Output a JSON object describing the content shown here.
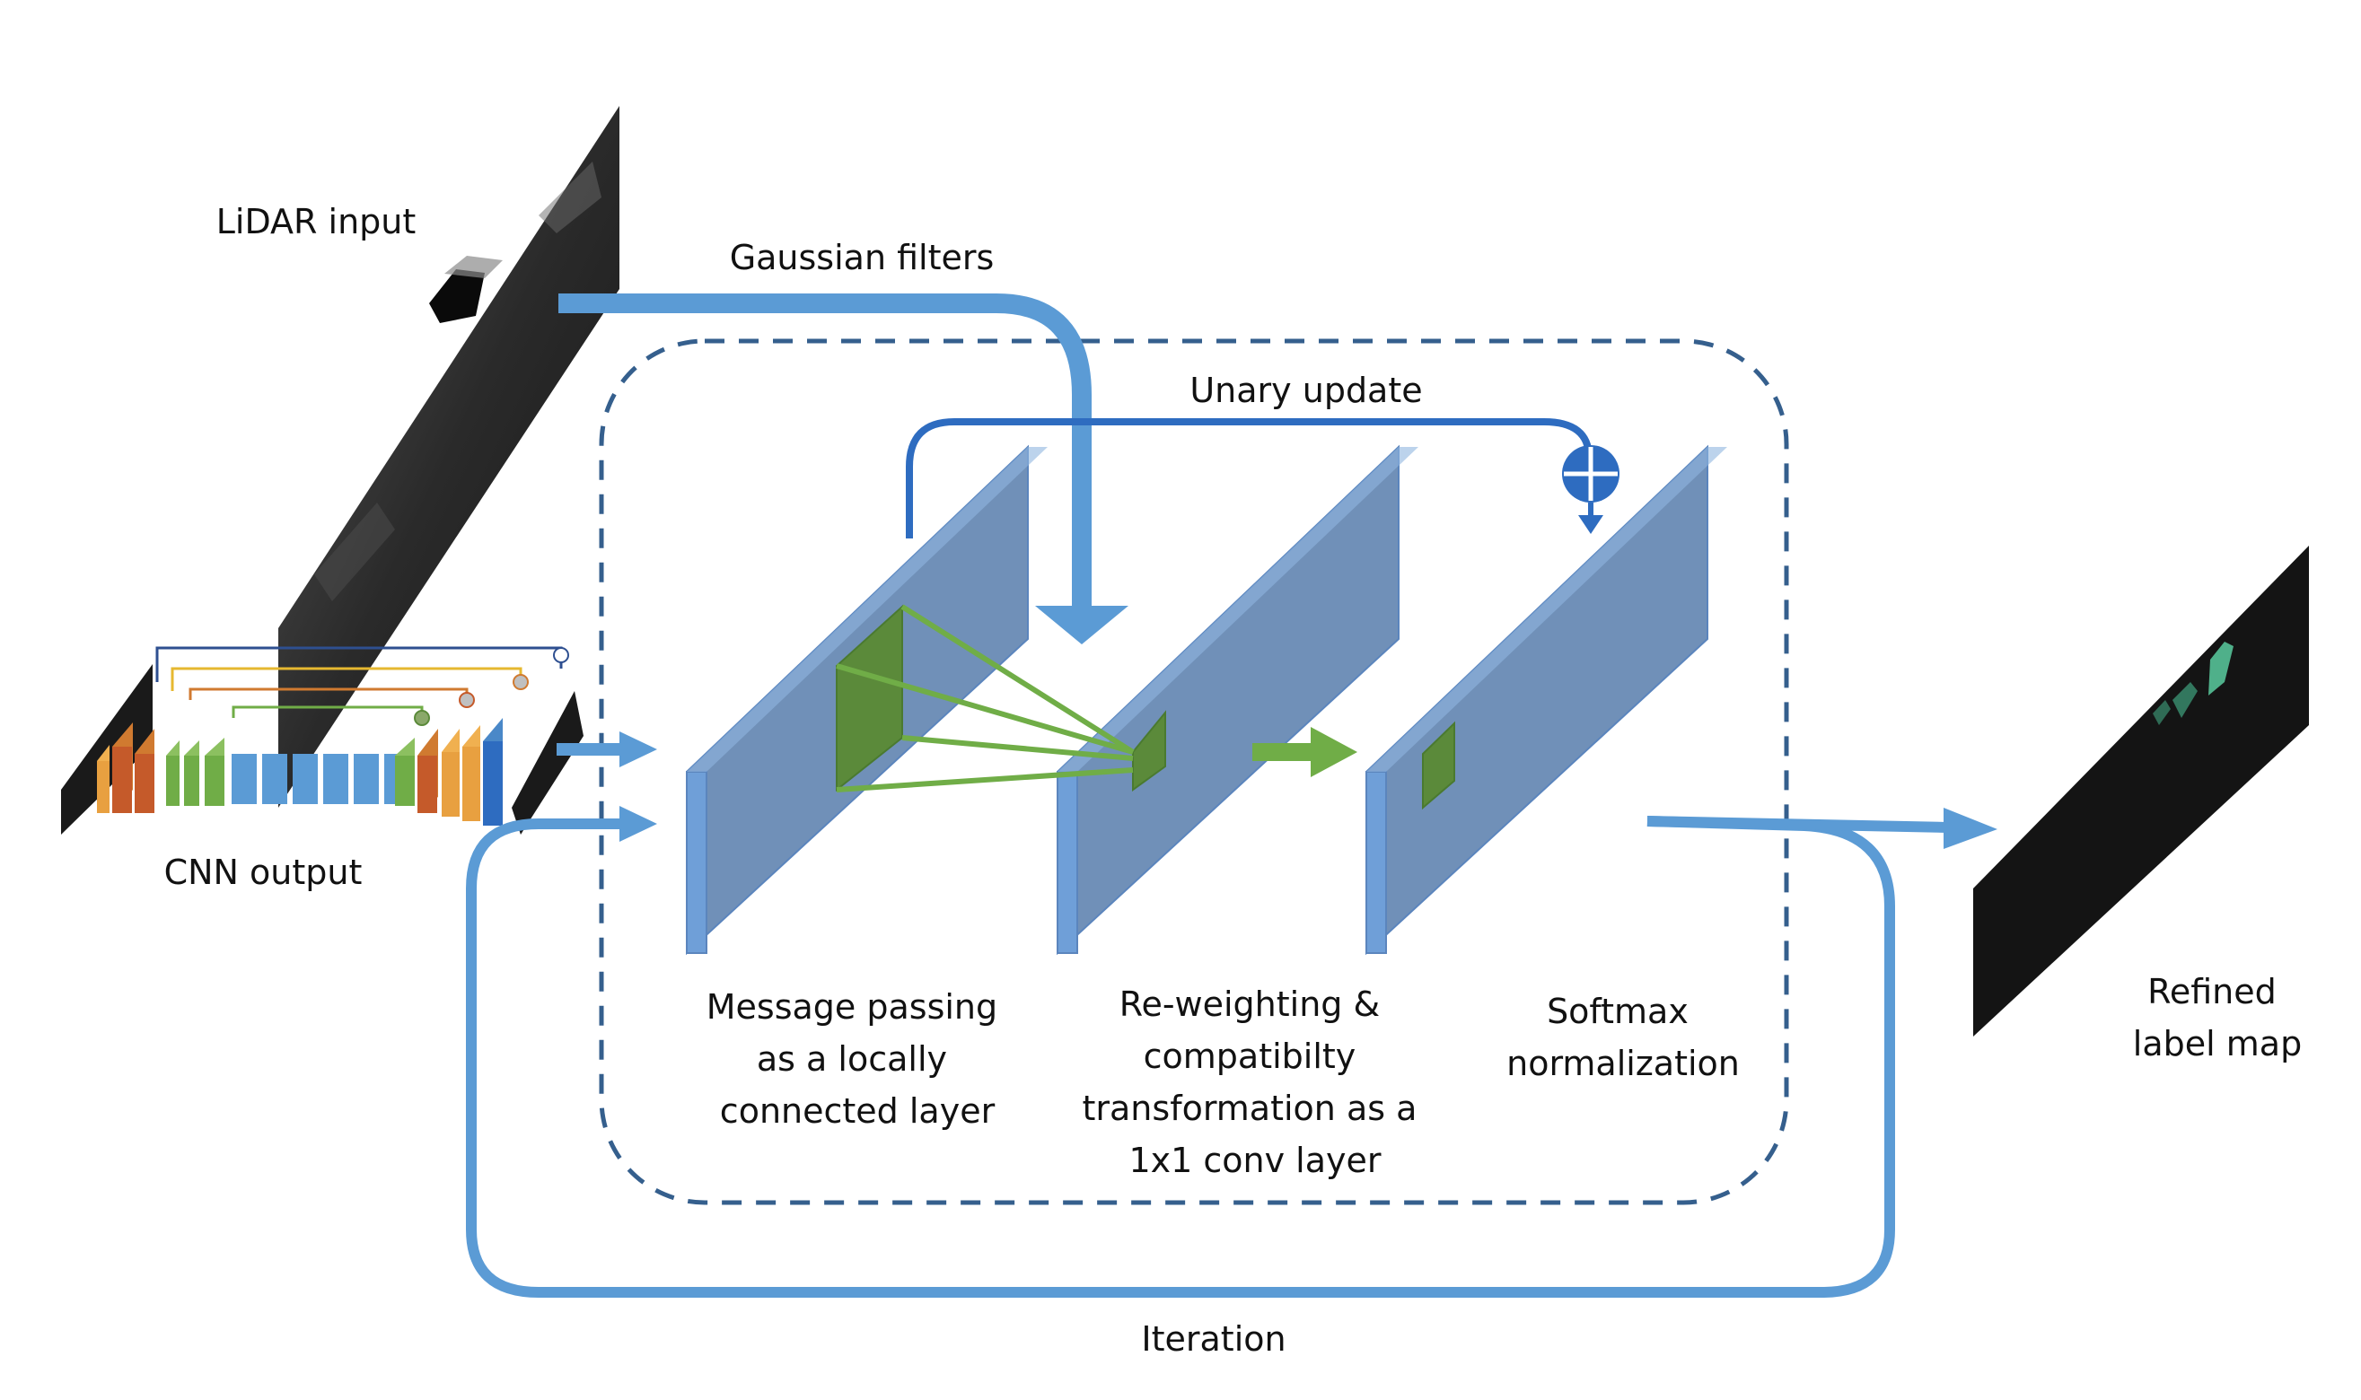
{
  "labels": {
    "lidar_input": "LiDAR input",
    "gaussian_filters": "Gaussian filters",
    "unary_update": "Unary update",
    "cnn_output": "CNN output",
    "message_passing": [
      "Message passing",
      "as a locally",
      "connected layer"
    ],
    "reweighting": [
      "Re-weighting &",
      "compatibilty",
      "transformation as a",
      "1x1 conv layer"
    ],
    "softmax": [
      "Softmax",
      "normalization"
    ],
    "refined": [
      "Refined",
      "label map"
    ],
    "iteration": "Iteration"
  },
  "colors": {
    "arrow_blue": "#5b9bd5",
    "unary_blue": "#2e6cc0",
    "dashed_border": "#355f8d",
    "layer_face": "#7090b8",
    "layer_edge": "#6f9fd8",
    "filter_green": "#5b8a3a",
    "line_green": "#70ad47",
    "encoder_orange": "#e8a040",
    "encoder_red": "#c55a2a",
    "encoder_green": "#70ad47",
    "bottleneck_blue": "#5b9bd5"
  }
}
